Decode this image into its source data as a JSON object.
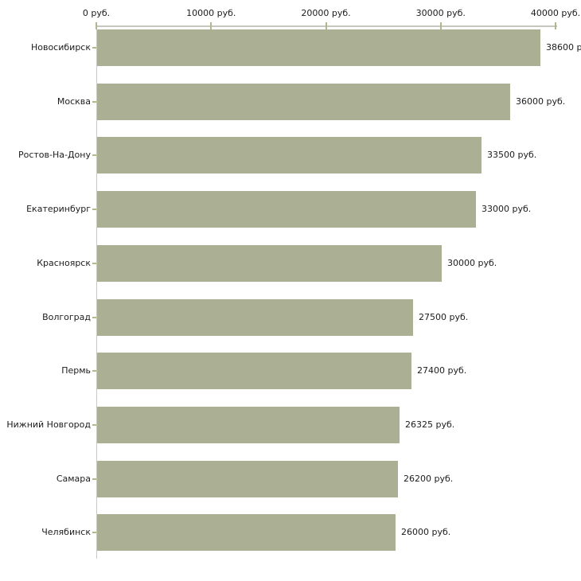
{
  "chart_data": {
    "type": "bar",
    "orientation": "horizontal",
    "title": "",
    "categories": [
      "Новосибирск",
      "Москва",
      "Ростов-На-Дону",
      "Екатеринбург",
      "Красноярск",
      "Волгоград",
      "Пермь",
      "Нижний Новгород",
      "Самара",
      "Челябинск"
    ],
    "values": [
      38600,
      36000,
      33500,
      33000,
      30000,
      27500,
      27400,
      26325,
      26200,
      26000
    ],
    "value_labels": [
      "38600 р",
      "36000 руб.",
      "33500 руб.",
      "33000 руб.",
      "30000 руб.",
      "27500 руб.",
      "27400 руб.",
      "26325 руб.",
      "26200 руб.",
      "26000 руб."
    ],
    "xlabel": "",
    "ylabel": "",
    "x_axis": {
      "position": "top",
      "min": 0,
      "max": 40000,
      "ticks": [
        0,
        10000,
        20000,
        30000,
        40000
      ],
      "tick_labels": [
        "0 руб.",
        "10000 руб.",
        "20000 руб.",
        "30000 руб.",
        "40000 руб."
      ]
    },
    "grid": false,
    "legend": false,
    "colors": {
      "bar": "#ABAF94",
      "axis_line": "#C6C6BE",
      "y_axis_line": "#C9C9C9",
      "tick_mark": "#B3B78C",
      "text": "#1C1C1C",
      "background": "#FFFFFF"
    }
  }
}
